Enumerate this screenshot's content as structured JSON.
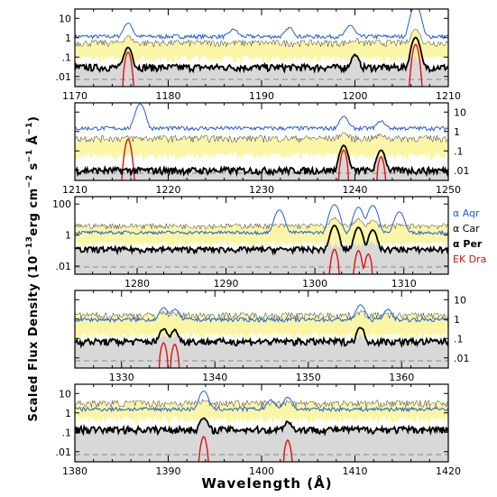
{
  "chart_data": {
    "type": "line",
    "xlabel": "Wavelength  (Å)",
    "ylabel": "Scaled Flux Density  (10",
    "ylabel_exponent": "−13",
    "ylabel_units": "erg cm",
    "ylabel_units_tail": "s",
    "ylabel_units_tail2": "Å",
    "ylabel_exp_a": "−2",
    "ylabel_exp_b": "−1",
    "ylabel_exp_c": "−1",
    "ylabel_close": ")",
    "y_scale": "log",
    "legend": {
      "placement": "right of third panel",
      "entries": [
        {
          "label": "α Aqr",
          "color": "#1f5fe0"
        },
        {
          "label": "α Car",
          "color": "#000000"
        },
        {
          "label": "α Per",
          "color": "#000000",
          "bold": true
        },
        {
          "label": "EK Dra",
          "color": "#e01010"
        }
      ]
    },
    "series_colors": {
      "alpha_aqr": "#1f5fe0",
      "alpha_per": "#000000",
      "ek_dra": "#e01010",
      "alpha_car_band": "#fbf6a6",
      "gray_fill": "#d8d8d8"
    },
    "panels": [
      {
        "xlim": [
          1170,
          1210
        ],
        "xticks": [
          "1170",
          "1180",
          "1190",
          "1200",
          "1210"
        ],
        "ylim": [
          0.003,
          30
        ],
        "ytick_side": "left",
        "yticks": [
          "10",
          "1",
          ".1",
          ".01"
        ],
        "aqr_peaks": [
          [
            1175.7,
            4.5
          ],
          [
            1199.5,
            3.2
          ],
          [
            1206.5,
            45
          ],
          [
            1193,
            2.1
          ],
          [
            1187,
            1.6
          ]
        ],
        "aqr_base": 1.1,
        "per_base": 0.03,
        "per_peaks": [
          [
            1175.7,
            0.28
          ],
          [
            1200,
            0.1
          ],
          [
            1206.5,
            1.0
          ]
        ],
        "car_low": 0.09,
        "car_high": 0.55,
        "ek_peaks": [
          [
            1175.7,
            0.18
          ],
          [
            1206.5,
            0.45
          ]
        ]
      },
      {
        "xlim": [
          1210,
          1250
        ],
        "xticks": [
          "1210",
          "1220",
          "1230",
          "1240",
          "1250"
        ],
        "ylim": [
          0.003,
          30
        ],
        "ytick_side": "right",
        "yticks": [
          "10",
          "1",
          ".1",
          ".01"
        ],
        "aqr_peaks": [
          [
            1217,
            25
          ],
          [
            1238.8,
            4.5
          ],
          [
            1242.8,
            2.0
          ]
        ],
        "aqr_base": 1.4,
        "per_base": 0.01,
        "per_peaks": [
          [
            1238.8,
            0.18
          ],
          [
            1242.8,
            0.1
          ]
        ],
        "car_low": 0.06,
        "car_high": 0.45,
        "ek_peaks": [
          [
            1215.7,
            0.4
          ],
          [
            1238.8,
            0.11
          ],
          [
            1242.8,
            0.05
          ]
        ]
      },
      {
        "xlim": [
          1273,
          1315
        ],
        "xticks": [
          "1280",
          "1290",
          "1300",
          "1310"
        ],
        "ylim": [
          0.003,
          300
        ],
        "ytick_side": "left",
        "yticks": [
          "100",
          "1",
          ".01"
        ],
        "aqr_peaks": [
          [
            1296,
            40
          ],
          [
            1302.2,
            90
          ],
          [
            1304.9,
            60
          ],
          [
            1306.5,
            80
          ],
          [
            1309.5,
            30
          ]
        ],
        "aqr_base": 1.4,
        "per_base": 0.12,
        "per_peaks": [
          [
            1302.2,
            4
          ],
          [
            1304.9,
            3
          ],
          [
            1306.5,
            2
          ]
        ],
        "car_low": 0.3,
        "car_high": 4,
        "ek_peaks": [
          [
            1302.2,
            0.12
          ],
          [
            1304.9,
            0.1
          ],
          [
            1306.0,
            0.06
          ]
        ]
      },
      {
        "xlim": [
          1325,
          1365
        ],
        "xticks": [
          "1330",
          "1340",
          "1350",
          "1360"
        ],
        "ylim": [
          0.003,
          30
        ],
        "ytick_side": "right",
        "yticks": [
          "10",
          "1",
          ".1",
          ".01"
        ],
        "aqr_peaks": [
          [
            1334.5,
            2.8
          ],
          [
            1335.7,
            2.2
          ],
          [
            1355.6,
            4.5
          ],
          [
            1358.5,
            2.2
          ]
        ],
        "aqr_base": 0.9,
        "per_base": 0.07,
        "per_peaks": [
          [
            1334.5,
            0.25
          ],
          [
            1335.7,
            0.2
          ],
          [
            1355.6,
            0.3
          ]
        ],
        "car_low": 0.15,
        "car_high": 1.6,
        "ek_peaks": [
          [
            1334.5,
            0.06
          ],
          [
            1335.7,
            0.05
          ]
        ]
      },
      {
        "xlim": [
          1380,
          1420
        ],
        "xticks": [
          "1380",
          "1390",
          "1400",
          "1410",
          "1420"
        ],
        "ylim": [
          0.003,
          30
        ],
        "ytick_side": "left",
        "yticks": [
          "10",
          "1",
          ".1",
          ".01"
        ],
        "aqr_peaks": [
          [
            1393.8,
            12
          ],
          [
            1402.8,
            5
          ],
          [
            1401,
            3
          ]
        ],
        "aqr_base": 1.5,
        "per_base": 0.14,
        "per_peaks": [
          [
            1393.8,
            0.4
          ],
          [
            1402.8,
            0.22
          ]
        ],
        "car_low": 0.5,
        "car_high": 3.2,
        "ek_peaks": [
          [
            1393.8,
            0.06
          ],
          [
            1402.8,
            0.04
          ]
        ]
      }
    ]
  }
}
